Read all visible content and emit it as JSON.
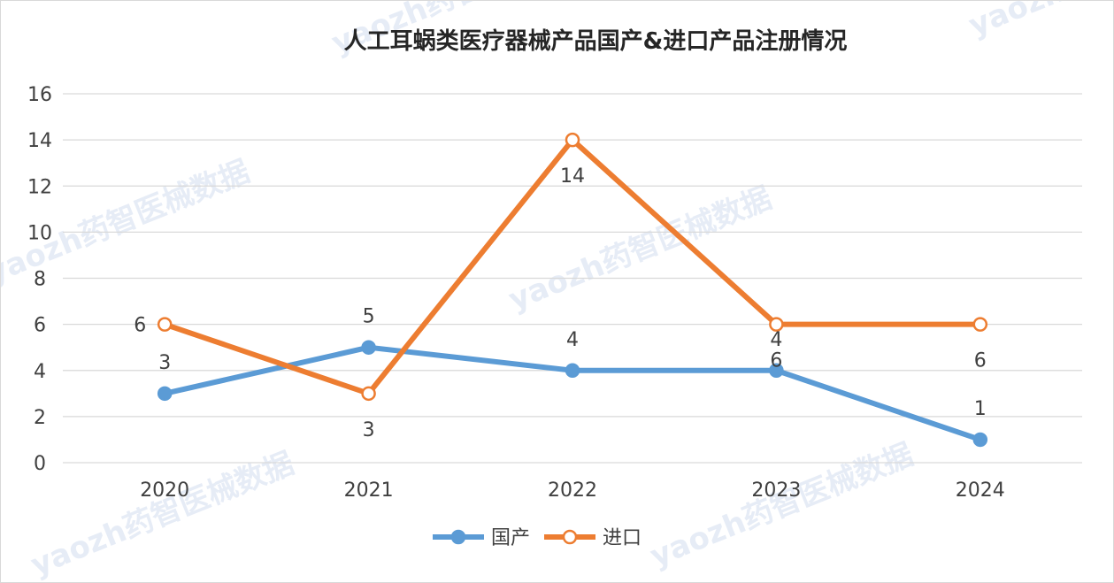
{
  "watermark": "yaozh药智医械数据",
  "chart_data": {
    "type": "line",
    "title": "人工耳蜗类医疗器械产品国产&进口产品注册情况",
    "x": [
      "2020",
      "2021",
      "2022",
      "2023",
      "2024"
    ],
    "series": [
      {
        "name": "国产",
        "values": [
          3,
          5,
          4,
          4,
          1
        ],
        "color": "#5b9bd5",
        "marker": "filled"
      },
      {
        "name": "进口",
        "values": [
          6,
          3,
          14,
          6,
          6
        ],
        "color": "#ed7d31",
        "marker": "hollow"
      }
    ],
    "ylim": [
      0,
      16
    ],
    "yticks": [
      "0",
      "2",
      "4",
      "6",
      "8",
      "10",
      "12",
      "14",
      "16"
    ],
    "grid": true,
    "legend": "bottom-center"
  }
}
